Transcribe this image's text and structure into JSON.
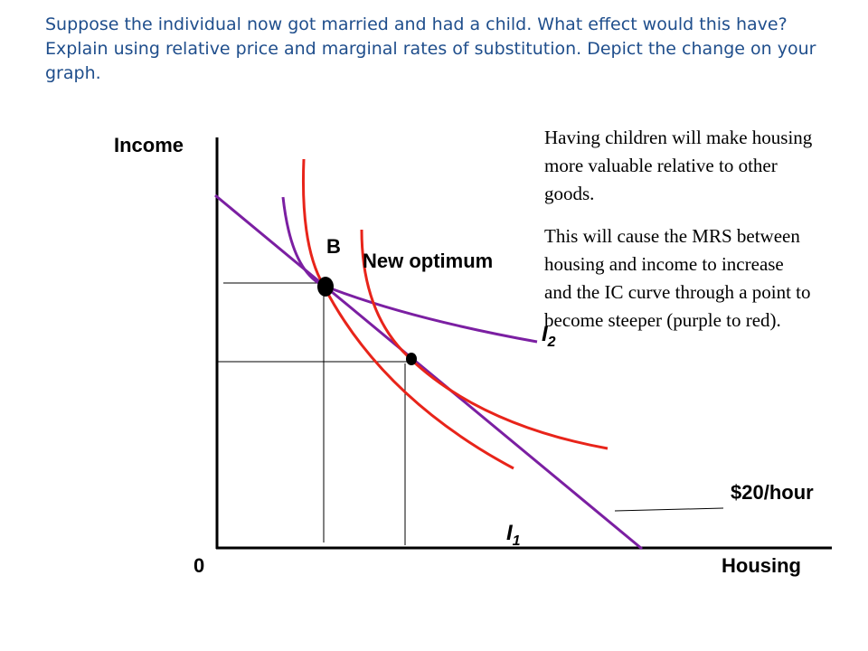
{
  "question": "Suppose the individual now got married and had a child. What effect would this have? Explain using relative price and marginal rates of substitution. Depict the change on your graph.",
  "explanation": [
    "Having children will make housing more valuable relative to other goods.",
    "This will cause the MRS between housing and income to increase and the IC curve through a point to become steeper (purple to red)."
  ],
  "axes": {
    "y_label": "Income",
    "x_label": "Housing",
    "origin": "0"
  },
  "labels": {
    "point_b": "B",
    "new_optimum": "New optimum",
    "price": "$20/hour",
    "ic_2": {
      "letter": "I",
      "sub": "2"
    },
    "ic_1": {
      "letter": "I",
      "sub": "1"
    }
  },
  "colors": {
    "old_curve": "#7b1fa2",
    "new_curve": "#e8241a",
    "axis": "#000000",
    "question_text": "#1f4e8c"
  }
}
